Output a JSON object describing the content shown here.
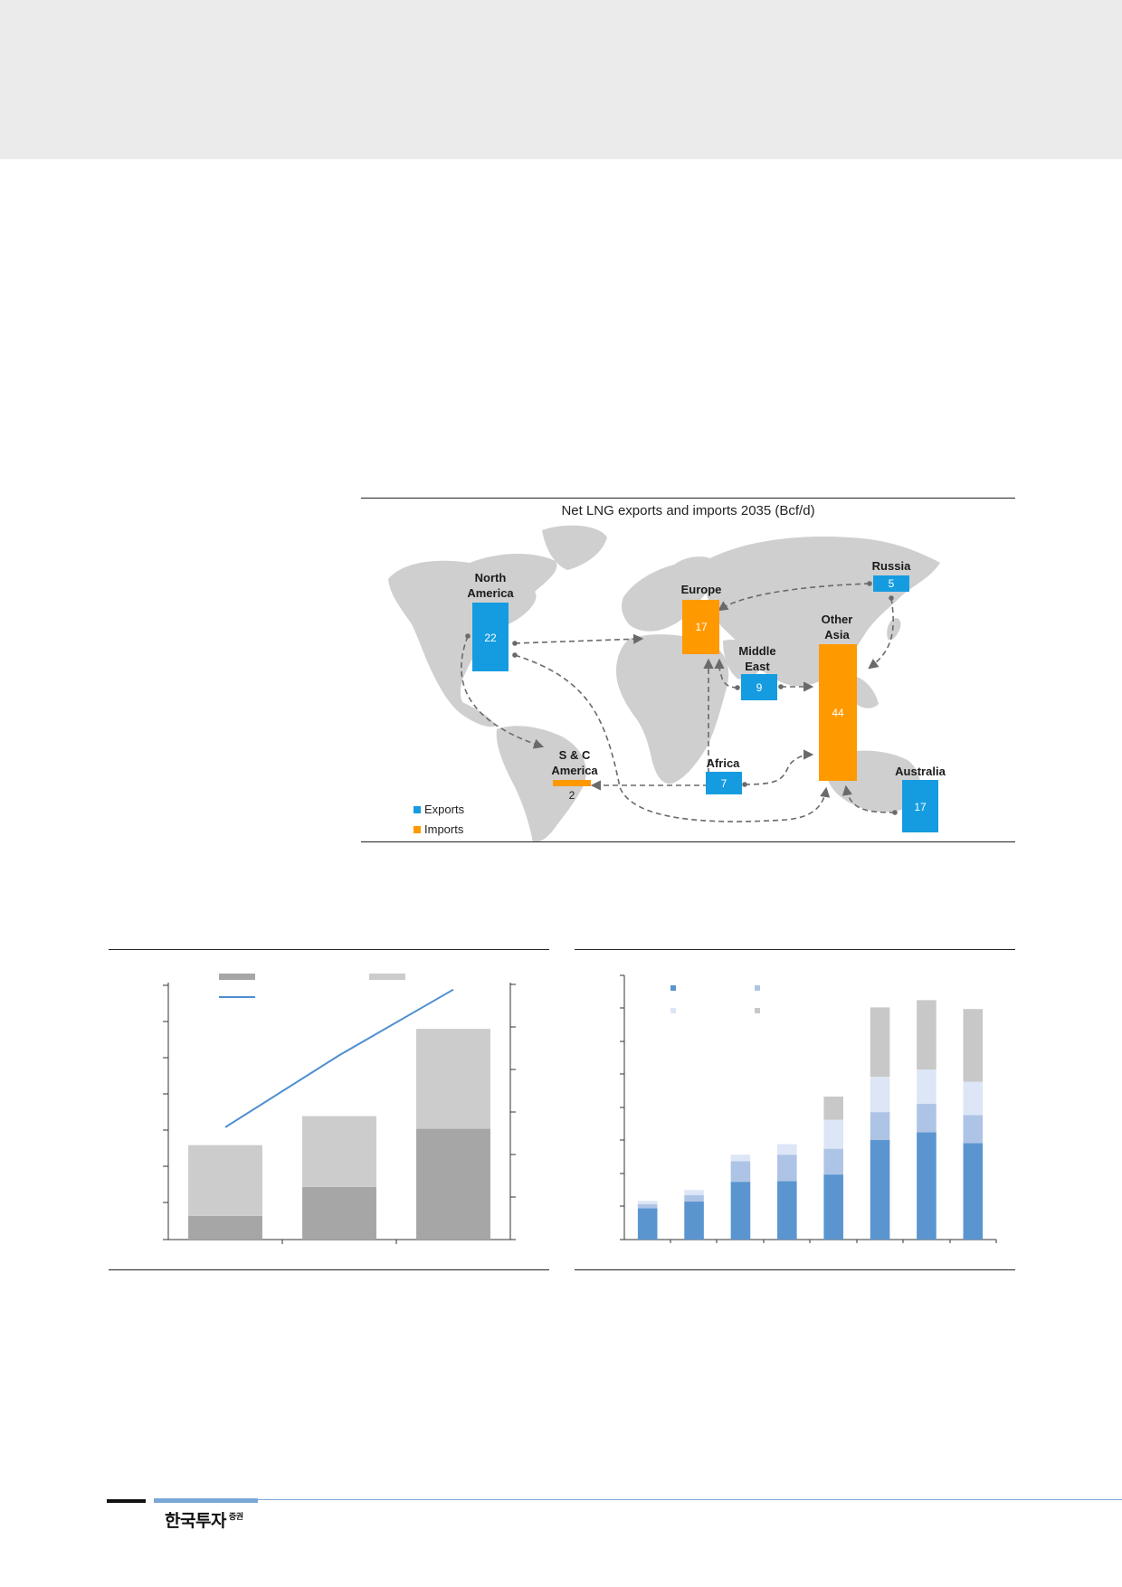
{
  "map": {
    "title": "Net LNG exports and imports 2035 (Bcf/d)",
    "colors": {
      "exports": "#159ce0",
      "imports": "#ff9900",
      "land": "#cfcfcf",
      "arrow": "#6a6a6a"
    },
    "legend": [
      {
        "label": "Exports",
        "kind": "exports"
      },
      {
        "label": "Imports",
        "kind": "imports"
      }
    ],
    "regions": [
      {
        "id": "north-america",
        "label_lines": [
          "North",
          "America"
        ],
        "value": "22",
        "kind": "exports"
      },
      {
        "id": "sc-america",
        "label_lines": [
          "S & C",
          "America"
        ],
        "value": "2",
        "kind": "imports"
      },
      {
        "id": "europe",
        "label_lines": [
          "Europe"
        ],
        "value": "17",
        "kind": "imports"
      },
      {
        "id": "russia",
        "label_lines": [
          "Russia"
        ],
        "value": "5",
        "kind": "exports"
      },
      {
        "id": "middle-east",
        "label_lines": [
          "Middle",
          "East"
        ],
        "value": "9",
        "kind": "exports"
      },
      {
        "id": "other-asia",
        "label_lines": [
          "Other",
          "Asia"
        ],
        "value": "44",
        "kind": "imports"
      },
      {
        "id": "africa",
        "label_lines": [
          "Africa"
        ],
        "value": "7",
        "kind": "exports"
      },
      {
        "id": "australia",
        "label_lines": [
          "Australia"
        ],
        "value": "17",
        "kind": "exports"
      }
    ]
  },
  "chart_data": [
    {
      "type": "bar",
      "title": "",
      "stacked": true,
      "categories": [
        "",
        "",
        ""
      ],
      "series": [
        {
          "name": "",
          "color": "#a6a6a6",
          "values": [
            0.65,
            1.45,
            3.05
          ]
        },
        {
          "name": "",
          "color": "#cccccc",
          "values": [
            1.95,
            1.95,
            2.75
          ]
        }
      ],
      "line": {
        "name": "",
        "color": "#4f8fd1",
        "values": [
          2.65,
          4.35,
          5.9
        ],
        "ylim": [
          0,
          6.0
        ]
      },
      "ylim": [
        0,
        7
      ],
      "grid": false
    },
    {
      "type": "bar",
      "title": "",
      "stacked": true,
      "categories": [
        "",
        "",
        "",
        "",
        "",
        "",
        "",
        ""
      ],
      "series": [
        {
          "name": "",
          "color": "#5a95d0",
          "values": [
            0.95,
            1.15,
            1.75,
            1.77,
            1.97,
            3.02,
            3.25,
            2.92
          ]
        },
        {
          "name": "",
          "color": "#aec4e6",
          "values": [
            0.12,
            0.2,
            0.62,
            0.8,
            0.78,
            0.84,
            0.86,
            0.85
          ]
        },
        {
          "name": "",
          "color": "#dde6f6",
          "values": [
            0.1,
            0.15,
            0.2,
            0.32,
            0.88,
            1.07,
            1.04,
            1.01
          ]
        },
        {
          "name": "",
          "color": "#c8c8c8",
          "values": [
            0,
            0,
            0,
            0,
            0.7,
            2.1,
            2.1,
            2.2
          ]
        }
      ],
      "ylim": [
        0,
        8
      ],
      "grid": false
    }
  ],
  "footer": {
    "logo_main": "한국투자",
    "logo_sub": "증권"
  }
}
